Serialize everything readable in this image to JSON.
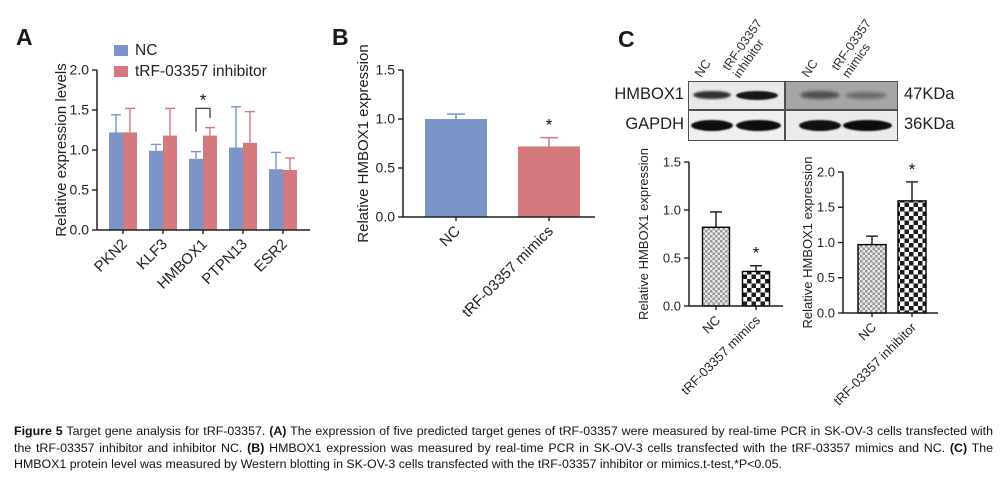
{
  "panels": {
    "a": "A",
    "b": "B",
    "c": "C"
  },
  "colors": {
    "nc_blue": "#7b95c9",
    "trf_red": "#d6797e",
    "axis": "#231f20"
  },
  "chart_data": [
    {
      "id": "panel_a",
      "type": "bar",
      "title": "",
      "ylabel": "Relative expression levels",
      "xlabel": "",
      "ylim": [
        0,
        2.0
      ],
      "yticks": [
        "0.0",
        "0.5",
        "1.0",
        "1.5",
        "2.0"
      ],
      "categories": [
        "PKN2",
        "KLF3",
        "HMBOX1",
        "PTPN13",
        "ESR2"
      ],
      "series": [
        {
          "name": "NC",
          "color": "#7b95c9",
          "values": [
            1.22,
            0.99,
            0.89,
            1.03,
            0.76
          ],
          "errors": [
            0.22,
            0.08,
            0.09,
            0.51,
            0.21
          ]
        },
        {
          "name": "tRF-03357 inhibitor",
          "color": "#d6797e",
          "values": [
            1.22,
            1.18,
            1.18,
            1.09,
            0.75
          ],
          "errors": [
            0.3,
            0.34,
            0.1,
            0.39,
            0.15
          ]
        }
      ],
      "legend_position": "top-left-inside",
      "grid": false,
      "significance": {
        "type": "bracket",
        "category": "HMBOX1",
        "label": "*"
      }
    },
    {
      "id": "panel_b",
      "type": "bar",
      "title": "",
      "ylabel": "Relative HMBOX1 expression",
      "xlabel": "",
      "ylim": [
        0,
        1.5
      ],
      "yticks": [
        "0.0",
        "0.5",
        "1.0",
        "1.5"
      ],
      "categories": [
        "NC",
        "tRF-03357 mimics"
      ],
      "values": [
        1.0,
        0.72
      ],
      "errors": [
        0.05,
        0.09
      ],
      "bar_colors": [
        "#7b95c9",
        "#d6797e"
      ],
      "grid": false,
      "significance": {
        "type": "star",
        "category_index": 1,
        "label": "*"
      }
    },
    {
      "id": "panel_c_left",
      "type": "bar",
      "title": "",
      "ylabel": "Relative HMBOX1 expression",
      "xlabel": "",
      "ylim": [
        0,
        1.5
      ],
      "yticks": [
        "0.0",
        "0.5",
        "1.0",
        "1.5"
      ],
      "categories": [
        "NC",
        "tRF-03357 mimics"
      ],
      "values": [
        0.82,
        0.36
      ],
      "errors": [
        0.16,
        0.06
      ],
      "bar_patterns": [
        "checker-small",
        "checker-large"
      ],
      "grid": false,
      "significance": {
        "type": "star",
        "category_index": 1,
        "label": "*"
      }
    },
    {
      "id": "panel_c_right",
      "type": "bar",
      "title": "",
      "ylabel": "Relative HMBOX1 expression",
      "xlabel": "",
      "ylim": [
        0,
        2.0
      ],
      "yticks": [
        "0.0",
        "0.5",
        "1.0",
        "1.5",
        "2.0"
      ],
      "categories": [
        "NC",
        "tRF-03357 inhibitor"
      ],
      "values": [
        0.97,
        1.59
      ],
      "errors": [
        0.12,
        0.27
      ],
      "bar_patterns": [
        "checker-small",
        "checker-large"
      ],
      "grid": false,
      "significance": {
        "type": "star",
        "category_index": 1,
        "label": "*"
      }
    }
  ],
  "blot": {
    "lane_labels": [
      [
        "NC"
      ],
      [
        "tRF-03357",
        "inhibitor"
      ],
      [
        "NC"
      ],
      [
        "tRF-03357",
        "mimics"
      ]
    ],
    "row_labels": [
      "HMBOX1",
      "GAPDH"
    ],
    "kda_labels": [
      "47KDa",
      "36KDa"
    ]
  },
  "caption": "**Figure 5** Target gene analysis for tRF-03357. **(A)** The expression of five predicted target genes of tRF-03357 were measured by real-time PCR in SK-OV-3 cells transfected with the tRF-03357 inhibitor and inhibitor NC. **(B)** HMBOX1 expression was measured by real-time PCR in SK-OV-3 cells transfected with the tRF-03357 mimics and NC. **(C)** The HMBOX1 protein level was measured by Western blotting in SK-OV-3 cells transfected with the tRF-03357 inhibitor or mimics.t-test,*P<0.05."
}
